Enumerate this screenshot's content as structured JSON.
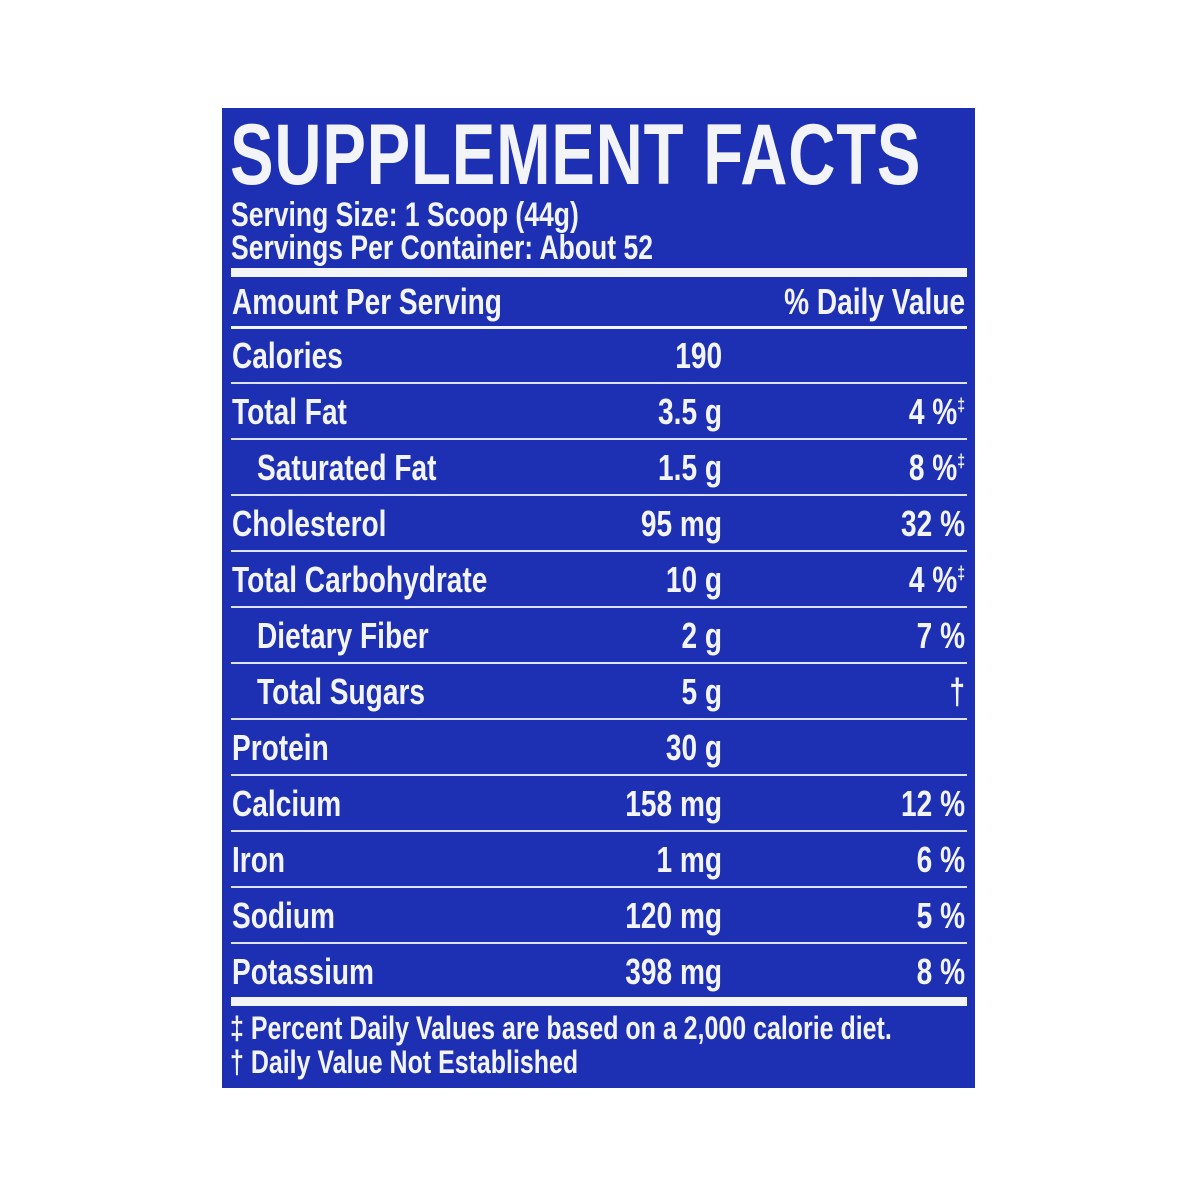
{
  "title": "SUPPLEMENT FACTS",
  "serving_size": "Serving Size: 1 Scoop (44g)",
  "servings_per_container": "Servings Per Container: About 52",
  "header": {
    "amount": "Amount Per Serving",
    "dv": "% Daily Value"
  },
  "rows": [
    {
      "label": "Calories",
      "amount": "190",
      "dv": "",
      "mark": "",
      "indent": false
    },
    {
      "label": "Total Fat",
      "amount": "3.5 g",
      "dv": "4 %",
      "mark": "‡",
      "indent": false
    },
    {
      "label": "Saturated Fat",
      "amount": "1.5 g",
      "dv": "8 %",
      "mark": "‡",
      "indent": true
    },
    {
      "label": "Cholesterol",
      "amount": "95 mg",
      "dv": "32 %",
      "mark": "",
      "indent": false
    },
    {
      "label": "Total Carbohydrate",
      "amount": "10 g",
      "dv": "4 %",
      "mark": "‡",
      "indent": false
    },
    {
      "label": "Dietary Fiber",
      "amount": "2 g",
      "dv": "7 %",
      "mark": "",
      "indent": true
    },
    {
      "label": "Total Sugars",
      "amount": "5 g",
      "dv": "†",
      "mark": "",
      "indent": true
    },
    {
      "label": "Protein",
      "amount": "30 g",
      "dv": "",
      "mark": "",
      "indent": false
    },
    {
      "label": "Calcium",
      "amount": "158 mg",
      "dv": "12 %",
      "mark": "",
      "indent": false
    },
    {
      "label": "Iron",
      "amount": "1 mg",
      "dv": "6 %",
      "mark": "",
      "indent": false
    },
    {
      "label": "Sodium",
      "amount": "120 mg",
      "dv": "5 %",
      "mark": "",
      "indent": false
    },
    {
      "label": "Potassium",
      "amount": "398 mg",
      "dv": "8 %",
      "mark": "",
      "indent": false
    }
  ],
  "footnotes": [
    "‡ Percent Daily Values are based on a 2,000 calorie diet.",
    "† Daily Value Not Established"
  ],
  "colors": {
    "background": "#1d2fb2",
    "text": "#f2f4f8"
  }
}
